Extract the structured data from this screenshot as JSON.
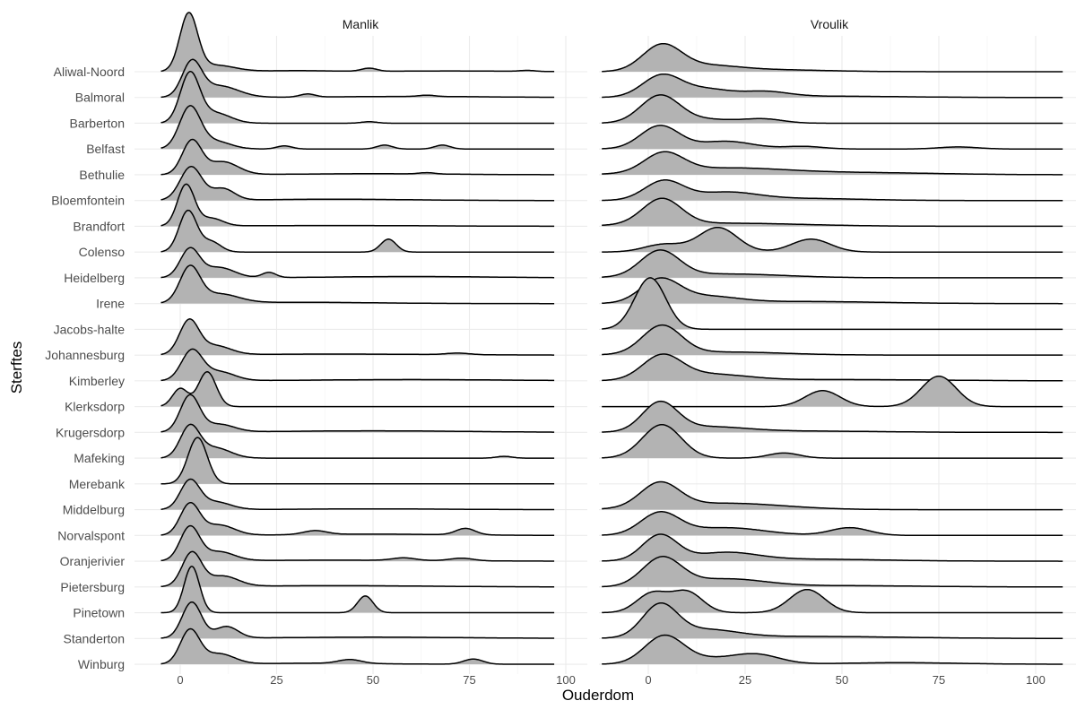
{
  "chart_data": {
    "type": "ridgeline",
    "xlabel": "Ouderdom",
    "ylabel": "Sterftes",
    "xlim": [
      -5,
      105
    ],
    "x_ticks": [
      "0",
      "25",
      "50",
      "75",
      "100"
    ],
    "x_tick_values": [
      0,
      25,
      50,
      75,
      100
    ],
    "grid": true,
    "fill_color": "#b3b3b3",
    "line_color": "#000000",
    "density_note": "components are [center_age, spread, scaled_density]",
    "categories": [
      "Aliwal-Noord",
      "Balmoral",
      "Barberton",
      "Belfast",
      "Bethulie",
      "Bloemfontein",
      "Brandfort",
      "Colenso",
      "Heidelberg",
      "Irene",
      "Jacobs-halte",
      "Johannesburg",
      "Kimberley",
      "Klerksdorp",
      "Krugersdorp",
      "Mafeking",
      "Merebank",
      "Middelburg",
      "Norvalspont",
      "Oranjerivier",
      "Pietersburg",
      "Pinetown",
      "Standerton",
      "Winburg"
    ],
    "panels": [
      {
        "title": "Manlik",
        "range": [
          -5,
          97
        ],
        "series": [
          [
            [
              2.2,
              2.3,
              2.2
            ],
            [
              9,
              5,
              0.25
            ],
            [
              30,
              10,
              0.04
            ],
            [
              49,
              2,
              0.12
            ],
            [
              90,
              2,
              0.04
            ],
            [
              70,
              15,
              0.03
            ]
          ],
          [
            [
              3,
              2.5,
              1.3
            ],
            [
              10,
              5,
              0.45
            ],
            [
              33,
              2,
              0.12
            ],
            [
              64,
              2,
              0.05
            ],
            [
              60,
              20,
              0.04
            ]
          ],
          [
            [
              2.5,
              2.5,
              1.9
            ],
            [
              9,
              4,
              0.4
            ],
            [
              49,
              2,
              0.06
            ]
          ],
          [
            [
              2.5,
              2.7,
              1.6
            ],
            [
              9,
              4,
              0.3
            ],
            [
              27,
              2,
              0.12
            ],
            [
              53,
              2,
              0.15
            ],
            [
              68,
              2,
              0.15
            ]
          ],
          [
            [
              3,
              2.5,
              1.3
            ],
            [
              11,
              4,
              0.5
            ],
            [
              50,
              20,
              0.04
            ],
            [
              64,
              2,
              0.05
            ]
          ],
          [
            [
              2.8,
              2.8,
              1.3
            ],
            [
              11,
              3,
              0.45
            ],
            [
              40,
              20,
              0.05
            ]
          ],
          [
            [
              1.5,
              2.2,
              1.6
            ],
            [
              8,
              3,
              0.3
            ],
            [
              40,
              25,
              0.03
            ]
          ],
          [
            [
              2,
              2.3,
              1.6
            ],
            [
              8,
              2.5,
              0.4
            ],
            [
              54,
              2,
              0.5
            ]
          ],
          [
            [
              2.5,
              2.5,
              1.1
            ],
            [
              10,
              4,
              0.4
            ],
            [
              23,
              1.8,
              0.2
            ],
            [
              60,
              20,
              0.05
            ]
          ],
          [
            [
              2.5,
              2.6,
              1.35
            ],
            [
              10,
              5,
              0.35
            ],
            [
              30,
              20,
              0.05
            ]
          ],
          [],
          [
            [
              2.3,
              2.5,
              1.3
            ],
            [
              9,
              4,
              0.35
            ],
            [
              72,
              3,
              0.06
            ],
            [
              40,
              25,
              0.04
            ]
          ],
          [
            [
              3,
              2.7,
              1.15
            ],
            [
              10,
              4,
              0.35
            ],
            [
              60,
              25,
              0.05
            ]
          ],
          [
            [
              0,
              2,
              0.7
            ],
            [
              7,
              2.3,
              1.35
            ]
          ],
          [
            [
              2.5,
              2.5,
              1.4
            ],
            [
              10,
              4,
              0.3
            ],
            [
              50,
              25,
              0.06
            ]
          ],
          [
            [
              2.5,
              2.5,
              1.2
            ],
            [
              9,
              4,
              0.4
            ],
            [
              84,
              2,
              0.07
            ]
          ],
          [
            [
              4.5,
              2.5,
              1.8
            ]
          ],
          [
            [
              2.5,
              2.5,
              1.1
            ],
            [
              9,
              4,
              0.3
            ],
            [
              50,
              20,
              0.03
            ]
          ],
          [
            [
              2.5,
              2.5,
              1.2
            ],
            [
              10,
              4,
              0.4
            ],
            [
              35,
              3,
              0.15
            ],
            [
              74,
              2.5,
              0.25
            ],
            [
              50,
              20,
              0.05
            ]
          ],
          [
            [
              2.5,
              2.5,
              1.3
            ],
            [
              10,
              4,
              0.35
            ],
            [
              58,
              3,
              0.1
            ],
            [
              73,
              3,
              0.1
            ],
            [
              40,
              25,
              0.04
            ]
          ],
          [
            [
              3,
              2.5,
              1.3
            ],
            [
              11,
              4,
              0.4
            ],
            [
              40,
              25,
              0.05
            ]
          ],
          [
            [
              3,
              2,
              1.8
            ],
            [
              48,
              2,
              0.65
            ]
          ],
          [
            [
              3,
              2.5,
              1.4
            ],
            [
              12,
              3,
              0.45
            ],
            [
              50,
              25,
              0.05
            ]
          ],
          [
            [
              2.5,
              2.5,
              1.3
            ],
            [
              10,
              4,
              0.4
            ],
            [
              44,
              3,
              0.15
            ],
            [
              76,
              2.5,
              0.2
            ],
            [
              35,
              15,
              0.04
            ]
          ]
        ]
      },
      {
        "title": "Vroulik",
        "range": [
          -12,
          107
        ],
        "series": [
          [
            [
              3.5,
              5,
              1.0
            ],
            [
              15,
              8,
              0.2
            ],
            [
              30,
              15,
              0.08
            ]
          ],
          [
            [
              3.5,
              5,
              0.85
            ],
            [
              15,
              6,
              0.3
            ],
            [
              30,
              6,
              0.2
            ],
            [
              45,
              20,
              0.05
            ]
          ],
          [
            [
              3,
              5,
              1.05
            ],
            [
              15,
              8,
              0.15
            ],
            [
              30,
              5,
              0.15
            ]
          ],
          [
            [
              3,
              5,
              0.9
            ],
            [
              20,
              7,
              0.3
            ],
            [
              40,
              5,
              0.1
            ],
            [
              80,
              5,
              0.08
            ]
          ],
          [
            [
              4,
              5,
              0.75
            ],
            [
              20,
              15,
              0.25
            ],
            [
              55,
              20,
              0.08
            ]
          ],
          [
            [
              4,
              5,
              0.75
            ],
            [
              20,
              8,
              0.3
            ],
            [
              40,
              15,
              0.08
            ]
          ],
          [
            [
              3.5,
              5,
              1.0
            ],
            [
              20,
              20,
              0.12
            ]
          ],
          [
            [
              4,
              5,
              0.3
            ],
            [
              18,
              5,
              0.95
            ],
            [
              42,
              5,
              0.5
            ]
          ],
          [
            [
              3,
              5,
              1.0
            ],
            [
              20,
              15,
              0.15
            ]
          ],
          [
            [
              3,
              5,
              0.9
            ],
            [
              15,
              8,
              0.25
            ],
            [
              40,
              20,
              0.08
            ]
          ],
          [
            [
              0.5,
              4,
              2.0
            ]
          ],
          [
            [
              3.5,
              5,
              1.1
            ],
            [
              20,
              15,
              0.12
            ]
          ],
          [
            [
              3.5,
              5,
              0.9
            ],
            [
              15,
              10,
              0.25
            ],
            [
              50,
              25,
              0.05
            ]
          ],
          [
            [
              45,
              4.5,
              0.62
            ],
            [
              75,
              4.5,
              1.18
            ]
          ],
          [
            [
              3,
              4.5,
              1.1
            ],
            [
              15,
              10,
              0.2
            ],
            [
              40,
              20,
              0.05
            ]
          ],
          [
            [
              3.5,
              5,
              1.3
            ],
            [
              35,
              4,
              0.2
            ]
          ],
          [],
          [
            [
              3,
              5,
              0.95
            ],
            [
              20,
              15,
              0.25
            ]
          ],
          [
            [
              3,
              5,
              0.85
            ],
            [
              20,
              10,
              0.3
            ],
            [
              52,
              5,
              0.3
            ]
          ],
          [
            [
              3,
              4.5,
              1.0
            ],
            [
              20,
              8,
              0.3
            ],
            [
              40,
              20,
              0.08
            ]
          ],
          [
            [
              3.5,
              5,
              1.1
            ],
            [
              20,
              10,
              0.3
            ],
            [
              50,
              20,
              0.05
            ]
          ],
          [
            [
              1,
              4,
              0.75
            ],
            [
              10,
              4,
              0.8
            ],
            [
              41,
              4.5,
              0.9
            ]
          ],
          [
            [
              3,
              4.5,
              1.25
            ],
            [
              15,
              8,
              0.3
            ],
            [
              40,
              25,
              0.08
            ]
          ],
          [
            [
              4,
              5,
              1.05
            ],
            [
              28,
              6,
              0.35
            ],
            [
              15,
              8,
              0.2
            ],
            [
              65,
              15,
              0.06
            ]
          ]
        ]
      }
    ]
  }
}
